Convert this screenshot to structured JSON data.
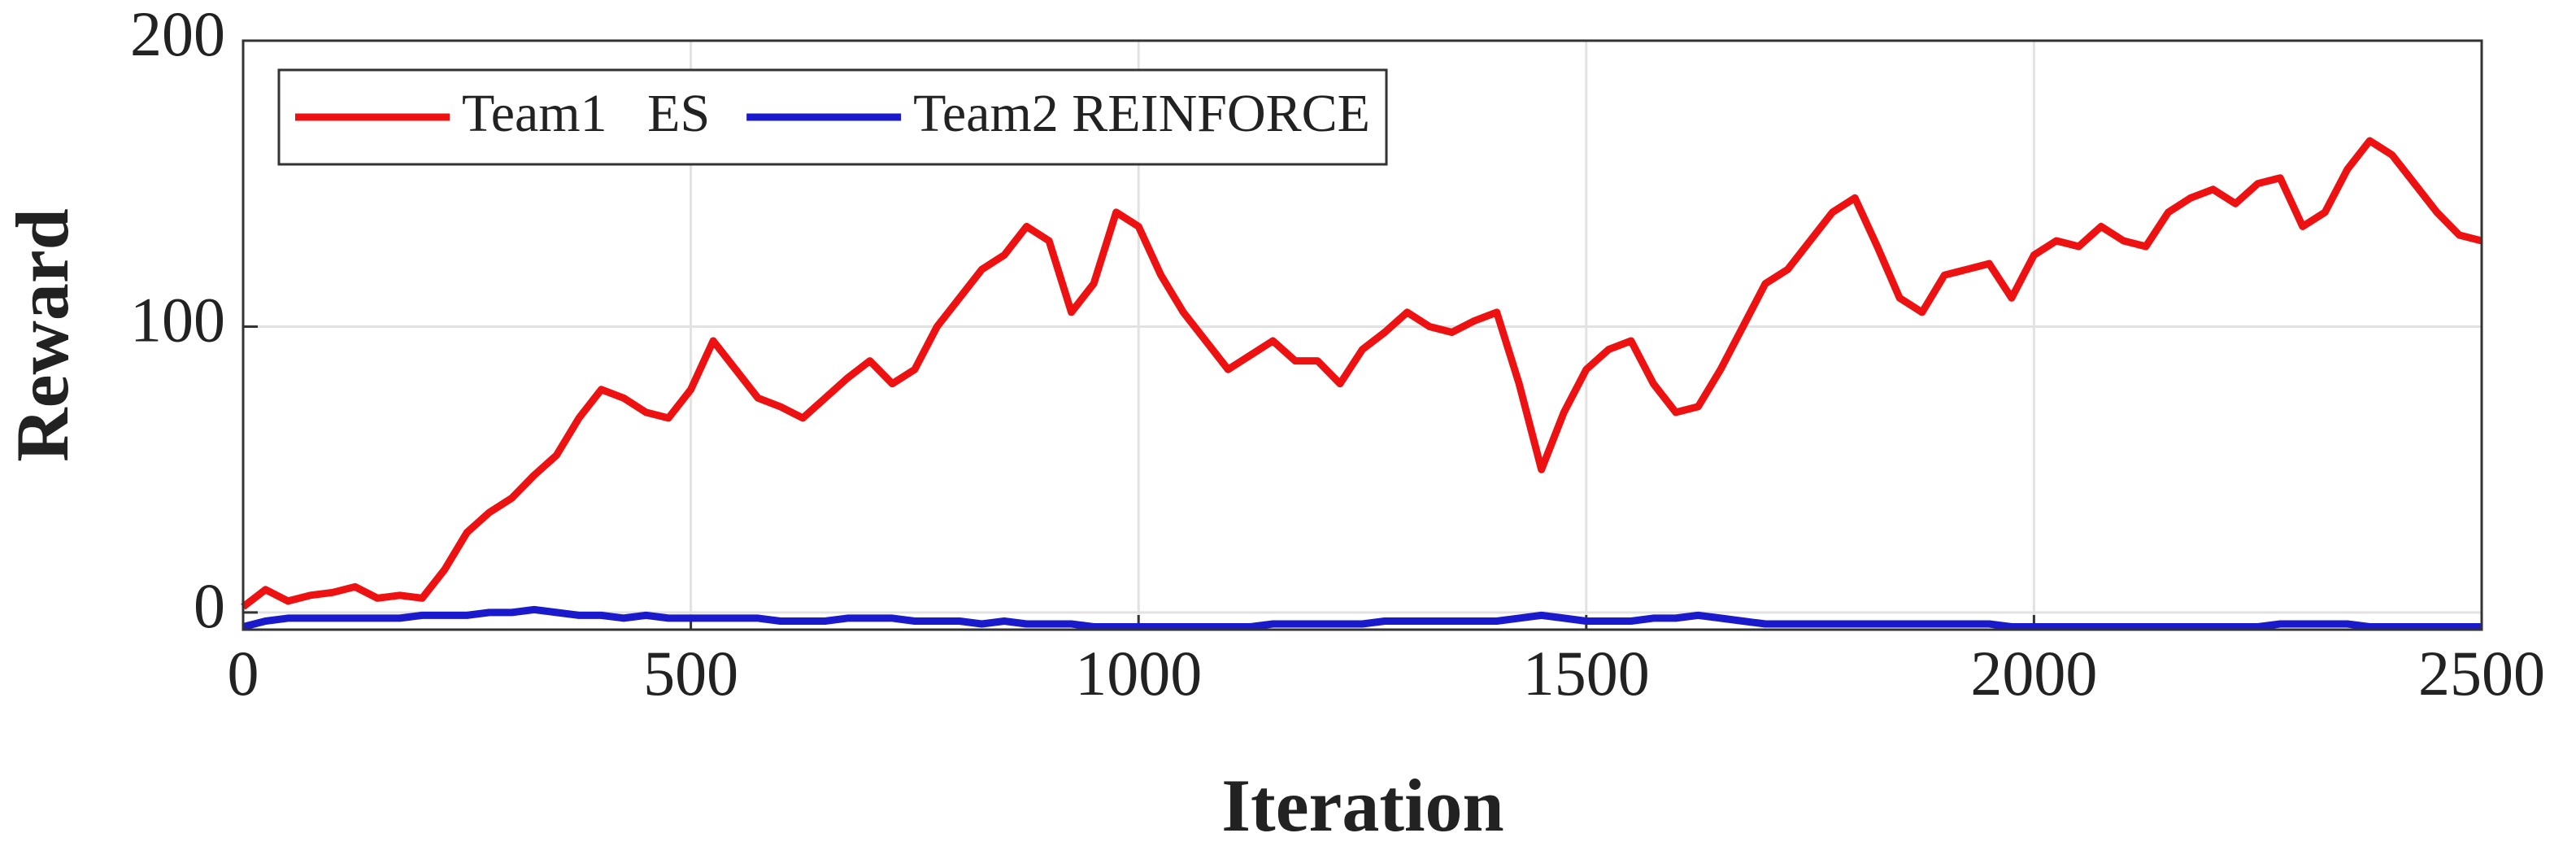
{
  "chart_data": {
    "type": "line",
    "xlabel": "Iteration",
    "ylabel": "Reward",
    "x": [
      0,
      25,
      50,
      75,
      100,
      125,
      150,
      175,
      200,
      225,
      250,
      275,
      300,
      325,
      350,
      375,
      400,
      425,
      450,
      475,
      500,
      525,
      550,
      575,
      600,
      625,
      650,
      675,
      700,
      725,
      750,
      775,
      800,
      825,
      850,
      875,
      900,
      925,
      950,
      975,
      1000,
      1025,
      1050,
      1075,
      1100,
      1125,
      1150,
      1175,
      1200,
      1225,
      1250,
      1275,
      1300,
      1325,
      1350,
      1375,
      1400,
      1425,
      1450,
      1475,
      1500,
      1525,
      1550,
      1575,
      1600,
      1625,
      1650,
      1675,
      1700,
      1725,
      1750,
      1775,
      1800,
      1825,
      1850,
      1875,
      1900,
      1925,
      1950,
      1975,
      2000,
      2025,
      2050,
      2075,
      2100,
      2125,
      2150,
      2175,
      2200,
      2225,
      2250,
      2275,
      2300,
      2325,
      2350,
      2375,
      2400,
      2425,
      2450,
      2475,
      2500
    ],
    "series": [
      {
        "name": "Team1   ES",
        "color": "#ee1111",
        "values": [
          2,
          8,
          4,
          6,
          7,
          9,
          5,
          6,
          5,
          15,
          28,
          35,
          40,
          48,
          55,
          68,
          78,
          75,
          70,
          68,
          78,
          95,
          85,
          75,
          72,
          68,
          75,
          82,
          88,
          80,
          85,
          100,
          110,
          120,
          125,
          135,
          130,
          105,
          115,
          140,
          135,
          118,
          105,
          95,
          85,
          90,
          95,
          88,
          88,
          80,
          92,
          98,
          105,
          100,
          98,
          102,
          105,
          80,
          50,
          70,
          85,
          92,
          95,
          80,
          70,
          72,
          85,
          100,
          115,
          120,
          130,
          140,
          145,
          128,
          110,
          105,
          118,
          120,
          122,
          110,
          125,
          130,
          128,
          135,
          130,
          128,
          140,
          145,
          148,
          143,
          150,
          152,
          135,
          140,
          155,
          165,
          160,
          150,
          140,
          132,
          130
        ]
      },
      {
        "name": "Team2 REINFORCE",
        "color": "#1a1acc",
        "values": [
          -5,
          -3,
          -2,
          -2,
          -2,
          -2,
          -2,
          -2,
          -1,
          -1,
          -1,
          0,
          0,
          1,
          0,
          -1,
          -1,
          -2,
          -1,
          -2,
          -2,
          -2,
          -2,
          -2,
          -3,
          -3,
          -3,
          -2,
          -2,
          -2,
          -3,
          -3,
          -3,
          -4,
          -3,
          -4,
          -4,
          -4,
          -5,
          -5,
          -5,
          -5,
          -5,
          -5,
          -5,
          -5,
          -4,
          -4,
          -4,
          -4,
          -4,
          -3,
          -3,
          -3,
          -3,
          -3,
          -3,
          -2,
          -1,
          -2,
          -3,
          -3,
          -3,
          -2,
          -2,
          -1,
          -2,
          -3,
          -4,
          -4,
          -4,
          -4,
          -4,
          -4,
          -4,
          -4,
          -4,
          -4,
          -4,
          -5,
          -5,
          -5,
          -5,
          -5,
          -5,
          -5,
          -5,
          -5,
          -5,
          -5,
          -5,
          -4,
          -4,
          -4,
          -4,
          -5,
          -5,
          -5,
          -5,
          -5,
          -5
        ]
      }
    ],
    "xlim": [
      0,
      2500
    ],
    "xticks": [
      0,
      500,
      1000,
      1500,
      2000,
      2500
    ],
    "ylim": [
      -6,
      200
    ],
    "yticks": [
      0,
      100,
      200
    ],
    "grid": true,
    "legend": "upper left"
  }
}
